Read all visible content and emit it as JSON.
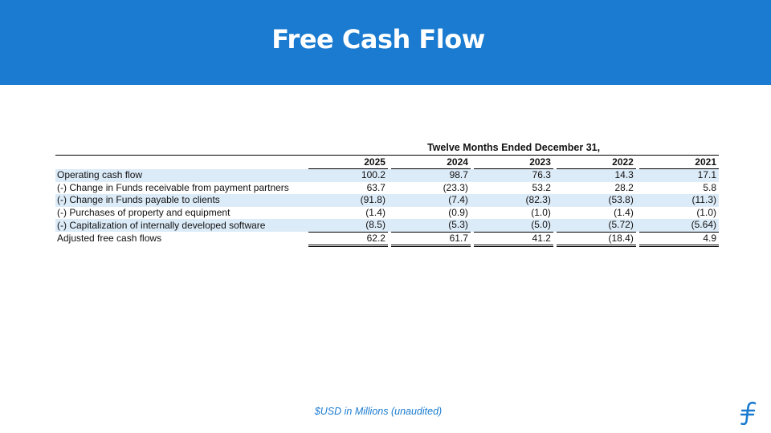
{
  "slide": {
    "title": "Free Cash Flow",
    "unit_note": "$USD in Millions (unaudited)",
    "header_color": "#1a7bd0",
    "row_shade_color": "#dcebf8",
    "logo_icon": "flywire-f-logo-icon"
  },
  "table": {
    "period_header": "Twelve Months Ended December 31,",
    "years": [
      "2025",
      "2024",
      "2023",
      "2022",
      "2021"
    ],
    "rows": [
      {
        "label": "Operating cash flow",
        "values": [
          "100.2",
          "98.7",
          "76.3",
          "14.3",
          "17.1"
        ]
      },
      {
        "label": "(-) Change in Funds receivable from payment partners",
        "values": [
          "63.7",
          "(23.3)",
          "53.2",
          "28.2",
          "5.8"
        ]
      },
      {
        "label": "(-) Change in Funds payable to clients",
        "values": [
          "(91.8)",
          "(7.4)",
          "(82.3)",
          "(53.8)",
          "(11.3)"
        ]
      },
      {
        "label": "(-) Purchases of property and equipment",
        "values": [
          "(1.4)",
          "(0.9)",
          "(1.0)",
          "(1.4)",
          "(1.0)"
        ]
      },
      {
        "label": "(-) Capitalization of internally developed software",
        "values": [
          "(8.5)",
          "(5.3)",
          "(5.0)",
          "(5.72)",
          "(5.64)"
        ]
      },
      {
        "label": "Adjusted free cash flows",
        "values": [
          "62.2",
          "61.7",
          "41.2",
          "(18.4)",
          "4.9"
        ]
      }
    ]
  }
}
